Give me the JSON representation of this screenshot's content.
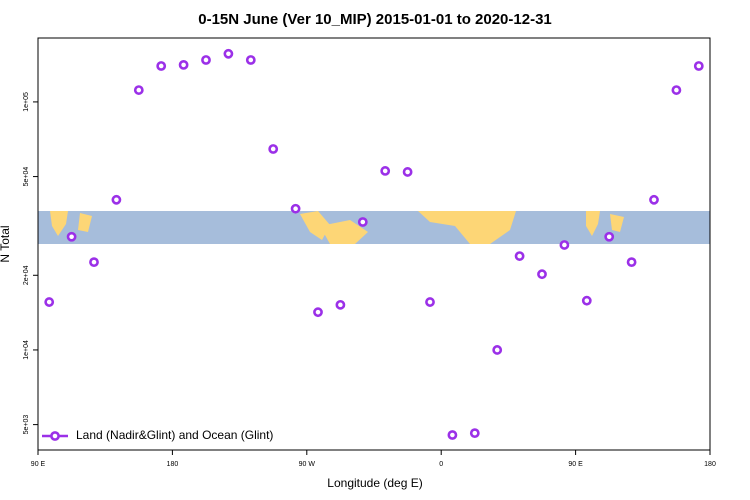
{
  "chart_data": {
    "type": "scatter",
    "title": "0-15N June (Ver 10_MIP)   2015-01-01 to 2020-12-31",
    "x_label": "Longitude (deg E)",
    "y_label": "N Total",
    "xlim": [
      90,
      540
    ],
    "xticks": [
      {
        "value": 90,
        "label": "90 E"
      },
      {
        "value": 180,
        "label": "180"
      },
      {
        "value": 270,
        "label": "90 W"
      },
      {
        "value": 360,
        "label": "0"
      },
      {
        "value": 450,
        "label": "90 E"
      },
      {
        "value": 540,
        "label": "180"
      }
    ],
    "ylim": [
      3950,
      181000
    ],
    "y_scale": "log",
    "yticks": [
      {
        "value": 5000,
        "label": "5e+03"
      },
      {
        "value": 10000,
        "label": "1e+04"
      },
      {
        "value": 20000,
        "label": "2e+04"
      },
      {
        "value": 50000,
        "label": "5e+04"
      },
      {
        "value": 100000,
        "label": "1e+05"
      }
    ],
    "legend": "lower left",
    "series": [
      {
        "name": "Land (Nadir&Glint) and Ocean (Glint)",
        "color": "#9b30e8",
        "x": [
          97.5,
          112.5,
          127.5,
          142.5,
          157.5,
          172.5,
          187.5,
          202.5,
          217.5,
          232.5,
          247.5,
          262.5,
          277.5,
          292.5,
          307.5,
          322.5,
          337.5,
          352.5,
          367.5,
          382.5,
          397.5,
          412.5,
          427.5,
          442.5,
          457.5,
          472.5,
          487.5,
          502.5,
          517.5,
          532.5
        ],
        "values": [
          15600,
          28600,
          22600,
          40300,
          111600,
          139600,
          141000,
          147600,
          156300,
          147600,
          64600,
          37100,
          14200,
          15200,
          32800,
          52700,
          52200,
          15600,
          4540,
          4620,
          10000,
          23900,
          20200,
          26500,
          15800,
          28600,
          22600,
          40300,
          111600,
          139600
        ]
      }
    ]
  }
}
